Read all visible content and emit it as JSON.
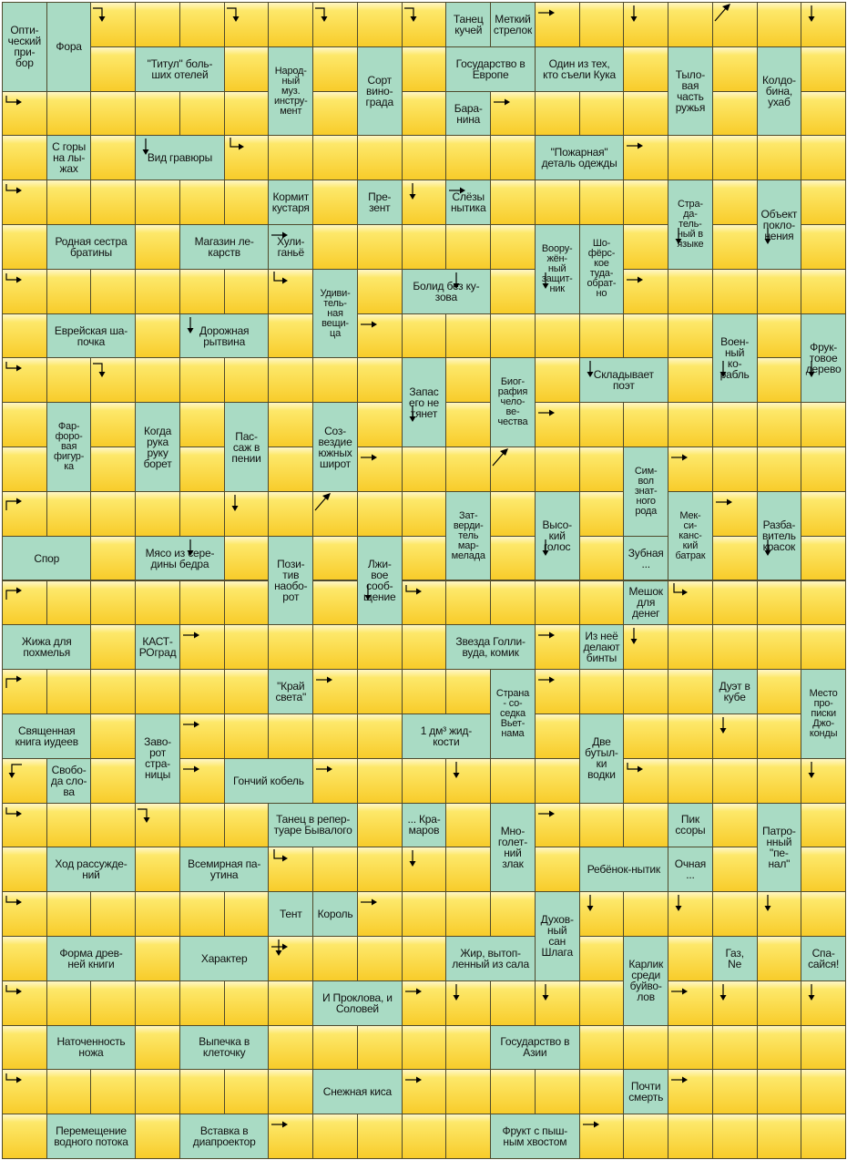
{
  "puzzle": {
    "rows": 26,
    "cols": 19,
    "clues": [
      {
        "r": 0,
        "c": 0,
        "rs": 2,
        "cs": 1,
        "text": "Опти-\nческий\nпри-\nбор"
      },
      {
        "r": 0,
        "c": 1,
        "rs": 2,
        "cs": 1,
        "text": "Фора"
      },
      {
        "r": 0,
        "c": 10,
        "rs": 1,
        "cs": 1,
        "text": "Танец\nкучей"
      },
      {
        "r": 0,
        "c": 11,
        "rs": 1,
        "cs": 1,
        "text": "Меткий\nстрелок"
      },
      {
        "r": 1,
        "c": 3,
        "rs": 1,
        "cs": 2,
        "text": "\"Титул\" боль-\nших отелей"
      },
      {
        "r": 1,
        "c": 6,
        "rs": 2,
        "cs": 1,
        "text": "Народ-\nный\nмуз.\nинстру-\nмент"
      },
      {
        "r": 1,
        "c": 8,
        "rs": 2,
        "cs": 1,
        "text": "Сорт\nвино-\nграда"
      },
      {
        "r": 1,
        "c": 10,
        "rs": 1,
        "cs": 2,
        "text": "Государство в\nЕвропе"
      },
      {
        "r": 1,
        "c": 12,
        "rs": 1,
        "cs": 2,
        "text": "Один из тех,\nкто съели Кука"
      },
      {
        "r": 1,
        "c": 15,
        "rs": 2,
        "cs": 1,
        "text": "Тыло-\nвая\nчасть\nружья"
      },
      {
        "r": 1,
        "c": 17,
        "rs": 2,
        "cs": 1,
        "text": "Колдо-\nбина,\nухаб"
      },
      {
        "r": 2,
        "c": 10,
        "rs": 1,
        "cs": 1,
        "text": "Бара-\nнина"
      },
      {
        "r": 3,
        "c": 1,
        "rs": 1,
        "cs": 1,
        "text": "С горы\nна лы-\nжах"
      },
      {
        "r": 3,
        "c": 3,
        "rs": 1,
        "cs": 2,
        "text": "Вид гравюры"
      },
      {
        "r": 3,
        "c": 12,
        "rs": 1,
        "cs": 2,
        "text": "\"Пожарная\"\nдеталь одежды"
      },
      {
        "r": 4,
        "c": 6,
        "rs": 1,
        "cs": 1,
        "text": "Кормит\nкустаря"
      },
      {
        "r": 4,
        "c": 8,
        "rs": 1,
        "cs": 1,
        "text": "Пре-\nзент"
      },
      {
        "r": 4,
        "c": 10,
        "rs": 1,
        "cs": 1,
        "text": "Слёзы\nнытика"
      },
      {
        "r": 4,
        "c": 15,
        "rs": 2,
        "cs": 1,
        "text": "Стра-\nда-\nтель-\nный в\nязыке"
      },
      {
        "r": 4,
        "c": 17,
        "rs": 2,
        "cs": 1,
        "text": "Объект\nпокло-\nнения"
      },
      {
        "r": 5,
        "c": 1,
        "rs": 1,
        "cs": 2,
        "text": "Родная сестра\nбратины"
      },
      {
        "r": 5,
        "c": 4,
        "rs": 1,
        "cs": 2,
        "text": "Магазин ле-\nкарств"
      },
      {
        "r": 5,
        "c": 6,
        "rs": 1,
        "cs": 1,
        "text": "Хули-\nганьё"
      },
      {
        "r": 5,
        "c": 12,
        "rs": 2,
        "cs": 1,
        "text": "Воору-\nжён-\nный\nзащит-\nник"
      },
      {
        "r": 5,
        "c": 13,
        "rs": 2,
        "cs": 1,
        "text": "Шо-\nфёрс-\nкое\nтуда-\nобрат-\nно"
      },
      {
        "r": 6,
        "c": 7,
        "rs": 2,
        "cs": 1,
        "text": "Удиви-\nтель-\nная\nвещи-\nца"
      },
      {
        "r": 6,
        "c": 9,
        "rs": 1,
        "cs": 2,
        "text": "Болид без ку-\nзова"
      },
      {
        "r": 7,
        "c": 1,
        "rs": 1,
        "cs": 2,
        "text": "Еврейская ша-\nпочка"
      },
      {
        "r": 7,
        "c": 4,
        "rs": 1,
        "cs": 2,
        "text": "Дорожная\nрытвина"
      },
      {
        "r": 7,
        "c": 16,
        "rs": 2,
        "cs": 1,
        "text": "Воен-\nный\nко-\nрабль"
      },
      {
        "r": 7,
        "c": 18,
        "rs": 2,
        "cs": 1,
        "text": "Фрук-\nтовое\nдерево"
      },
      {
        "r": 8,
        "c": 9,
        "rs": 2,
        "cs": 1,
        "text": "Запас\nего не\nтянет"
      },
      {
        "r": 8,
        "c": 11,
        "rs": 2,
        "cs": 1,
        "text": "Биог-\nрафия\nчело-\nве-\nчества"
      },
      {
        "r": 8,
        "c": 13,
        "rs": 1,
        "cs": 2,
        "text": "Складывает\nпоэт"
      },
      {
        "r": 9,
        "c": 1,
        "rs": 2,
        "cs": 1,
        "text": "Фар-\nфоро-\nвая\nфигур-\nка"
      },
      {
        "r": 9,
        "c": 3,
        "rs": 2,
        "cs": 1,
        "text": "Когда\nрука\nруку\nборет"
      },
      {
        "r": 9,
        "c": 5,
        "rs": 2,
        "cs": 1,
        "text": "Пас-\nсаж в\nпении"
      },
      {
        "r": 9,
        "c": 7,
        "rs": 2,
        "cs": 1,
        "text": "Соз-\nвездие\nюжных\nширот"
      },
      {
        "r": 10,
        "c": 14,
        "rs": 2,
        "cs": 1,
        "text": "Сим-\nвол\nзнат-\nного\nрода"
      },
      {
        "r": 11,
        "c": 10,
        "rs": 2,
        "cs": 1,
        "text": "Зат-\nверди-\nтель\nмар-\nмелада"
      },
      {
        "r": 11,
        "c": 12,
        "rs": 2,
        "cs": 1,
        "text": "Высо-\nкий\nголос"
      },
      {
        "r": 11,
        "c": 15,
        "rs": 2,
        "cs": 1,
        "text": "Мек-\nси-\nканс-\nкий\nбатрак"
      },
      {
        "r": 11,
        "c": 17,
        "rs": 2,
        "cs": 1,
        "text": "Разба-\nвитель\nкрасок"
      },
      {
        "r": 12,
        "c": 0,
        "rs": 1,
        "cs": 2,
        "text": "Спор"
      },
      {
        "r": 12,
        "c": 3,
        "rs": 1,
        "cs": 2,
        "text": "Мясо из сере-\nдины бедра"
      },
      {
        "r": 12,
        "c": 6,
        "rs": 2,
        "cs": 1,
        "text": "Пози-\nтив\nнаобо-\nрот"
      },
      {
        "r": 12,
        "c": 8,
        "rs": 2,
        "cs": 1,
        "text": "Лжи-\nвое\nсооб-\nщение"
      },
      {
        "r": 12,
        "c": 14,
        "rs": 1,
        "cs": 1,
        "text": "Зубная\n..."
      },
      {
        "r": 13,
        "c": 14,
        "rs": 1,
        "cs": 1,
        "text": "Мешок\nдля\nденег"
      },
      {
        "r": 14,
        "c": 0,
        "rs": 1,
        "cs": 2,
        "text": "Жижа для\nпохмелья"
      },
      {
        "r": 14,
        "c": 3,
        "rs": 1,
        "cs": 1,
        "text": "КАСТ-\nРОград"
      },
      {
        "r": 14,
        "c": 10,
        "rs": 1,
        "cs": 2,
        "text": "Звезда Голли-\nвуда, комик"
      },
      {
        "r": 14,
        "c": 13,
        "rs": 1,
        "cs": 1,
        "text": "Из неё\nделают\nбинты"
      },
      {
        "r": 15,
        "c": 6,
        "rs": 1,
        "cs": 1,
        "text": "\"Край\nсвета\""
      },
      {
        "r": 15,
        "c": 11,
        "rs": 2,
        "cs": 1,
        "text": "Страна\n- со-\nседка\nВьет-\nнама"
      },
      {
        "r": 15,
        "c": 16,
        "rs": 1,
        "cs": 1,
        "text": "Дуэт в\nкубе"
      },
      {
        "r": 15,
        "c": 18,
        "rs": 2,
        "cs": 1,
        "text": "Место\nпро-\nписки\nДжо-\nконды"
      },
      {
        "r": 16,
        "c": 0,
        "rs": 1,
        "cs": 2,
        "text": "Священная\nкнига иудеев"
      },
      {
        "r": 16,
        "c": 3,
        "rs": 2,
        "cs": 1,
        "text": "Заво-\nрот\nстра-\nницы"
      },
      {
        "r": 16,
        "c": 9,
        "rs": 1,
        "cs": 2,
        "text": "1 дм³ жид-\nкости"
      },
      {
        "r": 16,
        "c": 13,
        "rs": 2,
        "cs": 1,
        "text": "Две\nбутыл-\nки\nводки"
      },
      {
        "r": 17,
        "c": 1,
        "rs": 1,
        "cs": 1,
        "text": "Свобо-\nда сло-\nва"
      },
      {
        "r": 17,
        "c": 5,
        "rs": 1,
        "cs": 2,
        "text": "Гончий кобель"
      },
      {
        "r": 18,
        "c": 6,
        "rs": 1,
        "cs": 2,
        "text": "Танец в репер-\nтуаре Бывалого"
      },
      {
        "r": 18,
        "c": 9,
        "rs": 1,
        "cs": 1,
        "text": "... Кра-\nмаров"
      },
      {
        "r": 18,
        "c": 11,
        "rs": 2,
        "cs": 1,
        "text": "Мно-\nголет-\nний\nзлак"
      },
      {
        "r": 18,
        "c": 15,
        "rs": 1,
        "cs": 1,
        "text": "Пик\nссоры"
      },
      {
        "r": 18,
        "c": 17,
        "rs": 2,
        "cs": 1,
        "text": "Патро-\nнный\n\"пе-\nнал\""
      },
      {
        "r": 19,
        "c": 1,
        "rs": 1,
        "cs": 2,
        "text": "Ход рассужде-\nний"
      },
      {
        "r": 19,
        "c": 4,
        "rs": 1,
        "cs": 2,
        "text": "Всемирная па-\nутина"
      },
      {
        "r": 19,
        "c": 13,
        "rs": 1,
        "cs": 2,
        "text": "Ребёнок-нытик"
      },
      {
        "r": 19,
        "c": 15,
        "rs": 1,
        "cs": 1,
        "text": "Очная\n..."
      },
      {
        "r": 20,
        "c": 6,
        "rs": 1,
        "cs": 1,
        "text": "Тент"
      },
      {
        "r": 20,
        "c": 7,
        "rs": 1,
        "cs": 1,
        "text": "Король"
      },
      {
        "r": 20,
        "c": 12,
        "rs": 2,
        "cs": 1,
        "text": "Духов-\nный\nсан\nШлага"
      },
      {
        "r": 21,
        "c": 1,
        "rs": 1,
        "cs": 2,
        "text": "Форма древ-\nней книги"
      },
      {
        "r": 21,
        "c": 4,
        "rs": 1,
        "cs": 2,
        "text": "Характер"
      },
      {
        "r": 21,
        "c": 10,
        "rs": 1,
        "cs": 2,
        "text": "Жир, вытоп-\nленный из сала"
      },
      {
        "r": 21,
        "c": 14,
        "rs": 2,
        "cs": 1,
        "text": "Карлик\nсреди\nбуйво-\nлов"
      },
      {
        "r": 21,
        "c": 16,
        "rs": 1,
        "cs": 1,
        "text": "Газ,\nNe"
      },
      {
        "r": 21,
        "c": 18,
        "rs": 1,
        "cs": 1,
        "text": "Спа-\nсайся!"
      },
      {
        "r": 22,
        "c": 7,
        "rs": 1,
        "cs": 2,
        "text": "И Проклова, и\nСоловей"
      },
      {
        "r": 23,
        "c": 1,
        "rs": 1,
        "cs": 2,
        "text": "Наточенность\nножа"
      },
      {
        "r": 23,
        "c": 4,
        "rs": 1,
        "cs": 2,
        "text": "Выпечка в\nклеточку"
      },
      {
        "r": 23,
        "c": 11,
        "rs": 1,
        "cs": 2,
        "text": "Государство в\nАзии"
      },
      {
        "r": 24,
        "c": 7,
        "rs": 1,
        "cs": 2,
        "text": "Снежная киса"
      },
      {
        "r": 24,
        "c": 14,
        "rs": 1,
        "cs": 1,
        "text": "Почти\nсмерть"
      },
      {
        "r": 25,
        "c": 1,
        "rs": 1,
        "cs": 2,
        "text": "Перемещение\nводного потока"
      },
      {
        "r": 25,
        "c": 4,
        "rs": 1,
        "cs": 2,
        "text": "Вставка в\nдиапроектор"
      },
      {
        "r": 25,
        "c": 11,
        "rs": 1,
        "cs": 2,
        "text": "Фрукт с пыш-\nным хвостом"
      }
    ],
    "arrows": [
      {
        "r": 0,
        "c": 2,
        "dir": "bend-right-down"
      },
      {
        "r": 0,
        "c": 5,
        "dir": "bend-right-down"
      },
      {
        "r": 0,
        "c": 7,
        "dir": "bend-right-down"
      },
      {
        "r": 0,
        "c": 9,
        "dir": "bend-right-down"
      },
      {
        "r": 0,
        "c": 12,
        "dir": "right"
      },
      {
        "r": 0,
        "c": 14,
        "dir": "down"
      },
      {
        "r": 0,
        "c": 16,
        "dir": "diag-up"
      },
      {
        "r": 0,
        "c": 18,
        "dir": "down"
      },
      {
        "r": 2,
        "c": 0,
        "dir": "bend-right"
      },
      {
        "r": 2,
        "c": 11,
        "dir": "right"
      },
      {
        "r": 3,
        "c": 3,
        "dir": "down"
      },
      {
        "r": 3,
        "c": 5,
        "dir": "bend-down-right"
      },
      {
        "r": 3,
        "c": 14,
        "dir": "right"
      },
      {
        "r": 4,
        "c": 0,
        "dir": "bend-right"
      },
      {
        "r": 4,
        "c": 9,
        "dir": "down"
      },
      {
        "r": 4,
        "c": 10,
        "dir": "right"
      },
      {
        "r": 5,
        "c": 6,
        "dir": "right"
      },
      {
        "r": 5,
        "c": 15,
        "dir": "down"
      },
      {
        "r": 5,
        "c": 17,
        "dir": "down"
      },
      {
        "r": 6,
        "c": 0,
        "dir": "bend-right"
      },
      {
        "r": 6,
        "c": 6,
        "dir": "bend-down-right"
      },
      {
        "r": 6,
        "c": 10,
        "dir": "down"
      },
      {
        "r": 6,
        "c": 12,
        "dir": "down"
      },
      {
        "r": 6,
        "c": 14,
        "dir": "right"
      },
      {
        "r": 7,
        "c": 8,
        "dir": "right"
      },
      {
        "r": 7,
        "c": 4,
        "dir": "down"
      },
      {
        "r": 8,
        "c": 0,
        "dir": "bend-right"
      },
      {
        "r": 8,
        "c": 2,
        "dir": "bend-right-down"
      },
      {
        "r": 8,
        "c": 13,
        "dir": "down"
      },
      {
        "r": 8,
        "c": 16,
        "dir": "down"
      },
      {
        "r": 8,
        "c": 18,
        "dir": "down"
      },
      {
        "r": 9,
        "c": 9,
        "dir": "down"
      },
      {
        "r": 9,
        "c": 12,
        "dir": "right"
      },
      {
        "r": 10,
        "c": 8,
        "dir": "right"
      },
      {
        "r": 10,
        "c": 11,
        "dir": "diag-up"
      },
      {
        "r": 10,
        "c": 15,
        "dir": "right"
      },
      {
        "r": 11,
        "c": 5,
        "dir": "down"
      },
      {
        "r": 11,
        "c": 0,
        "dir": "bend-up-right"
      },
      {
        "r": 11,
        "c": 7,
        "dir": "diag-up"
      },
      {
        "r": 11,
        "c": 16,
        "dir": "right"
      },
      {
        "r": 12,
        "c": 4,
        "dir": "down"
      },
      {
        "r": 12,
        "c": 12,
        "dir": "down"
      },
      {
        "r": 12,
        "c": 17,
        "dir": "down"
      },
      {
        "r": 13,
        "c": 0,
        "dir": "bend-up-right"
      },
      {
        "r": 13,
        "c": 8,
        "dir": "down"
      },
      {
        "r": 13,
        "c": 9,
        "dir": "bend-right"
      },
      {
        "r": 13,
        "c": 15,
        "dir": "bend-down-right"
      },
      {
        "r": 14,
        "c": 4,
        "dir": "right"
      },
      {
        "r": 14,
        "c": 12,
        "dir": "right"
      },
      {
        "r": 14,
        "c": 14,
        "dir": "down"
      },
      {
        "r": 15,
        "c": 0,
        "dir": "bend-up-right"
      },
      {
        "r": 15,
        "c": 7,
        "dir": "right"
      },
      {
        "r": 15,
        "c": 12,
        "dir": "right"
      },
      {
        "r": 16,
        "c": 4,
        "dir": "right"
      },
      {
        "r": 16,
        "c": 16,
        "dir": "down"
      },
      {
        "r": 17,
        "c": 0,
        "dir": "bend-left-down"
      },
      {
        "r": 17,
        "c": 4,
        "dir": "right"
      },
      {
        "r": 17,
        "c": 7,
        "dir": "right"
      },
      {
        "r": 17,
        "c": 10,
        "dir": "down"
      },
      {
        "r": 17,
        "c": 14,
        "dir": "bend-right"
      },
      {
        "r": 17,
        "c": 18,
        "dir": "down"
      },
      {
        "r": 18,
        "c": 0,
        "dir": "bend-right"
      },
      {
        "r": 18,
        "c": 3,
        "dir": "bend-right-down"
      },
      {
        "r": 18,
        "c": 12,
        "dir": "right"
      },
      {
        "r": 19,
        "c": 6,
        "dir": "bend-down-right"
      },
      {
        "r": 19,
        "c": 9,
        "dir": "down"
      },
      {
        "r": 20,
        "c": 0,
        "dir": "bend-right"
      },
      {
        "r": 20,
        "c": 8,
        "dir": "right"
      },
      {
        "r": 20,
        "c": 13,
        "dir": "down"
      },
      {
        "r": 20,
        "c": 15,
        "dir": "down"
      },
      {
        "r": 20,
        "c": 17,
        "dir": "down"
      },
      {
        "r": 21,
        "c": 6,
        "dir": "right"
      },
      {
        "r": 21,
        "c": 6,
        "dir": "down"
      },
      {
        "r": 22,
        "c": 0,
        "dir": "bend-right"
      },
      {
        "r": 22,
        "c": 9,
        "dir": "right"
      },
      {
        "r": 22,
        "c": 10,
        "dir": "down"
      },
      {
        "r": 22,
        "c": 12,
        "dir": "down"
      },
      {
        "r": 22,
        "c": 15,
        "dir": "right"
      },
      {
        "r": 22,
        "c": 16,
        "dir": "down"
      },
      {
        "r": 22,
        "c": 18,
        "dir": "down"
      },
      {
        "r": 24,
        "c": 0,
        "dir": "bend-right"
      },
      {
        "r": 24,
        "c": 9,
        "dir": "right"
      },
      {
        "r": 24,
        "c": 15,
        "dir": "right"
      },
      {
        "r": 25,
        "c": 6,
        "dir": "right"
      },
      {
        "r": 25,
        "c": 13,
        "dir": "right"
      }
    ]
  }
}
